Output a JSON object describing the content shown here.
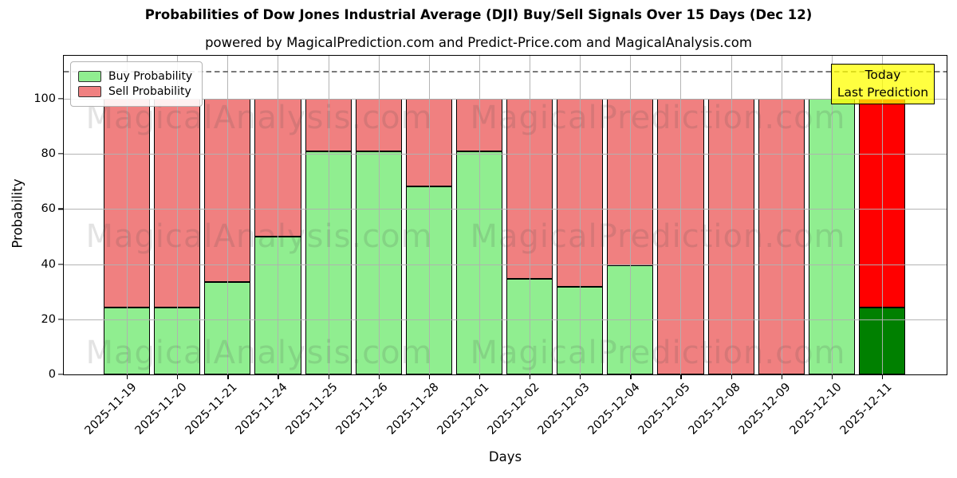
{
  "title": "Probabilities of Dow Jones Industrial Average (DJI) Buy/Sell Signals Over 15 Days (Dec 12)",
  "subtitle": "powered by MagicalPrediction.com and Predict-Price.com and MagicalAnalysis.com",
  "legend": {
    "buy_label": "Buy Probability",
    "sell_label": "Sell Probability"
  },
  "annotation_box": {
    "line1": "Today",
    "line2": "Last Prediction"
  },
  "watermarks": {
    "left": "MagicalAnalysis.com",
    "right": "MagicalPrediction.com"
  },
  "axes": {
    "xlabel": "Days",
    "ylabel": "Probability",
    "yticks": [
      0,
      20,
      40,
      60,
      80,
      100
    ],
    "dashed_line_y": 110
  },
  "colors": {
    "buy": "#90EE90",
    "sell": "#F08080",
    "today_buy": "#008000",
    "today_sell": "#FF0000",
    "bar_edge": "#000000",
    "grid": "#b0b0b0",
    "today_box_bg": "rgba(255,255,0,0.75)",
    "today_box_border": "#000000"
  },
  "chart_data": {
    "type": "bar",
    "stacked": true,
    "title": "Probabilities of Dow Jones Industrial Average (DJI) Buy/Sell Signals Over 15 Days (Dec 12)",
    "xlabel": "Days",
    "ylabel": "Probability",
    "ylim": [
      0,
      116
    ],
    "grid": true,
    "legend_position": "upper left",
    "dashed_threshold": 110,
    "categories": [
      "2025-11-19",
      "2025-11-20",
      "2025-11-21",
      "2025-11-24",
      "2025-11-25",
      "2025-11-26",
      "2025-11-28",
      "2025-12-01",
      "2025-12-02",
      "2025-12-03",
      "2025-12-04",
      "2025-12-05",
      "2025-12-08",
      "2025-12-09",
      "2025-12-10",
      "2025-12-11"
    ],
    "series": [
      {
        "name": "Buy Probability",
        "color": "#90EE90",
        "values": [
          24.3,
          24.3,
          33.5,
          50.0,
          81.0,
          81.0,
          68.3,
          81.0,
          34.6,
          31.7,
          39.5,
          0.0,
          0.0,
          0.0,
          100.0,
          24.3
        ]
      },
      {
        "name": "Sell Probability",
        "color": "#F08080",
        "values": [
          75.7,
          75.7,
          66.5,
          50.0,
          19.0,
          19.0,
          31.7,
          19.0,
          65.4,
          68.3,
          60.5,
          100.0,
          100.0,
          100.0,
          0.0,
          75.7
        ]
      }
    ],
    "today_bar": {
      "index": 15,
      "label": "Today / Last Prediction",
      "buy_color": "#008000",
      "sell_color": "#FF0000"
    }
  }
}
